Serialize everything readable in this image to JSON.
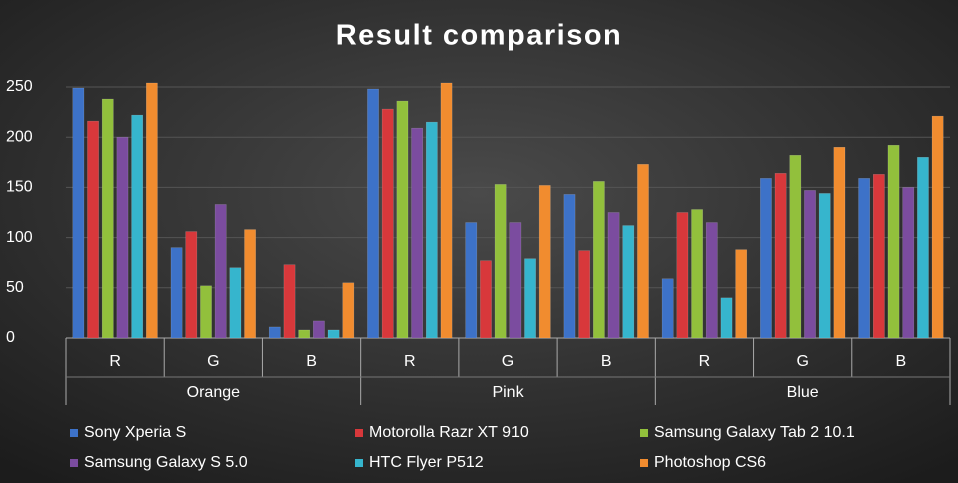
{
  "chart_data": {
    "type": "bar",
    "title": "Result comparison",
    "categories": [
      "R",
      "G",
      "B",
      "R",
      "G",
      "B",
      "R",
      "G",
      "B"
    ],
    "groups": [
      "Orange",
      "Pink",
      "Blue"
    ],
    "series": [
      {
        "name": "Sony Xperia S",
        "color": "#3d72c8",
        "values": [
          249,
          90,
          11,
          248,
          115,
          143,
          59,
          159,
          159
        ]
      },
      {
        "name": "Motorolla Razr XT 910",
        "color": "#d8383b",
        "values": [
          216,
          106,
          73,
          228,
          77,
          87,
          125,
          164,
          163
        ]
      },
      {
        "name": "Samsung Galaxy Tab 2 10.1",
        "color": "#92c03c",
        "values": [
          238,
          52,
          8,
          236,
          153,
          156,
          128,
          182,
          192
        ]
      },
      {
        "name": "Samsung Galaxy S 5.0",
        "color": "#7b4c9f",
        "values": [
          200,
          133,
          17,
          209,
          115,
          125,
          115,
          147,
          150
        ]
      },
      {
        "name": "HTC Flyer P512",
        "color": "#36b5cd",
        "values": [
          222,
          70,
          8,
          215,
          79,
          112,
          40,
          144,
          180
        ]
      },
      {
        "name": "Photoshop CS6",
        "color": "#f18c2f",
        "values": [
          254,
          108,
          55,
          254,
          152,
          173,
          88,
          190,
          221
        ]
      }
    ],
    "ylim": [
      0,
      250
    ],
    "yticks": [
      0,
      50,
      100,
      150,
      200,
      250
    ],
    "grid": true,
    "legend": "bottom"
  }
}
